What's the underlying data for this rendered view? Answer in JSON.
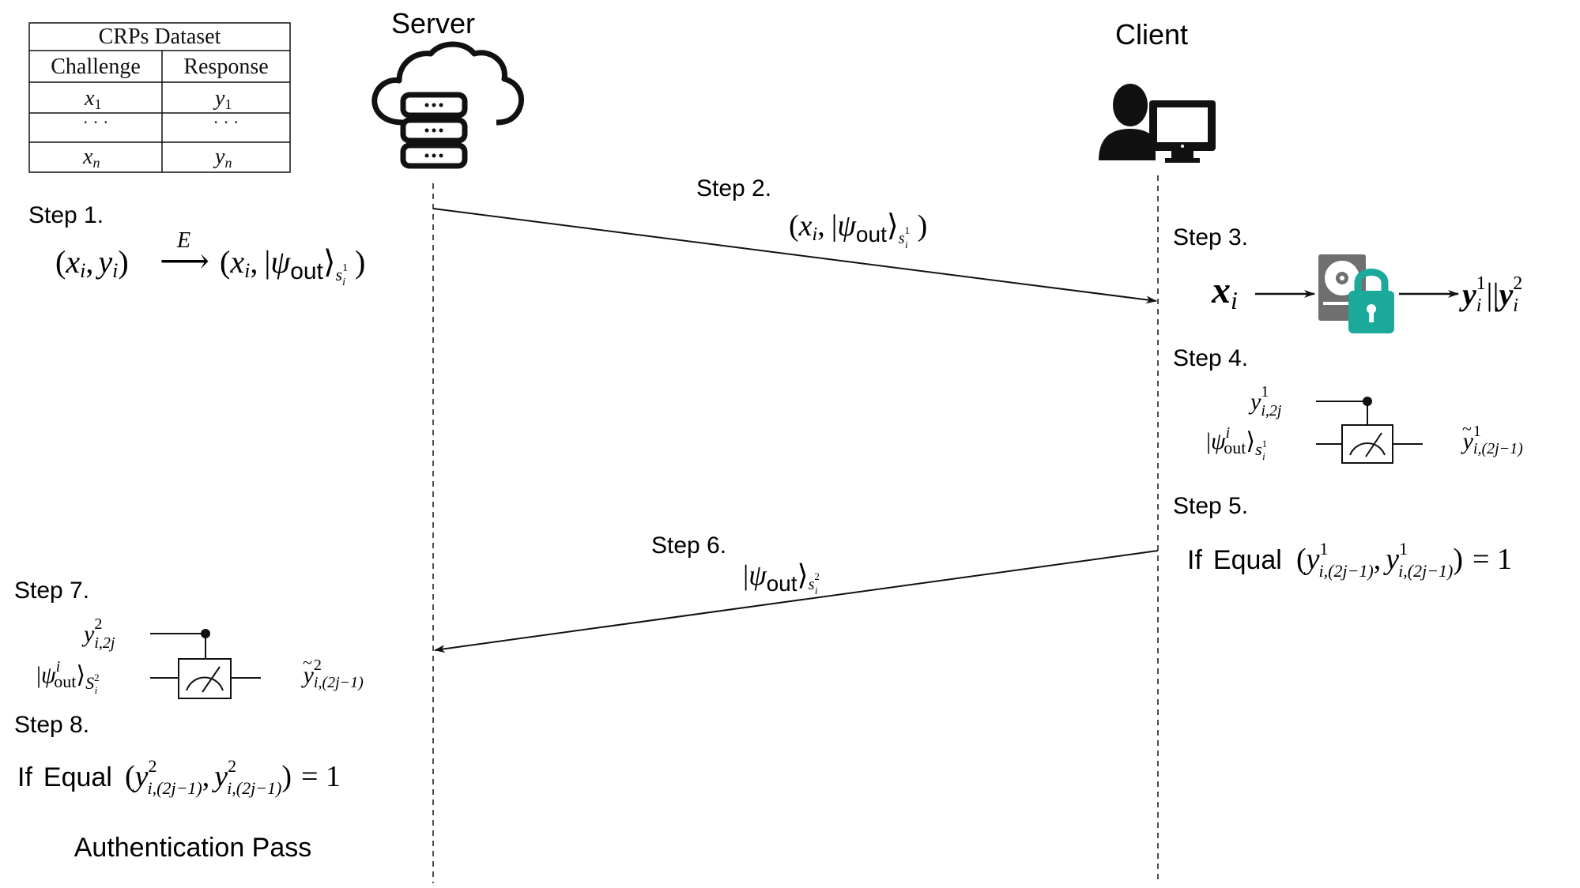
{
  "table": {
    "title": "CRPs Dataset",
    "headers": [
      "Challenge",
      "Response"
    ],
    "rows": [
      {
        "challenge": "x",
        "challenge_sub": "1",
        "response": "y",
        "response_sub": "1"
      },
      {
        "challenge": "· · ·",
        "challenge_sub": "",
        "response": "· · ·",
        "response_sub": ""
      },
      {
        "challenge": "x",
        "challenge_sub": "n",
        "response": "y",
        "response_sub": "n"
      }
    ]
  },
  "server": {
    "label": "Server",
    "icon": "cloud-database-icon"
  },
  "client": {
    "label": "Client",
    "icon": "user-computer-icon"
  },
  "steps": {
    "step1": {
      "label": "Step 1."
    },
    "step2": {
      "label": "Step 2."
    },
    "step3": {
      "label": "Step 3."
    },
    "step4": {
      "label": "Step 4."
    },
    "step5": {
      "label": "Step 5."
    },
    "step6": {
      "label": "Step 6."
    },
    "step7": {
      "label": "Step 7."
    },
    "step8": {
      "label": "Step 8."
    }
  },
  "math": {
    "x": "x",
    "y": "y",
    "i": "i",
    "E": "E",
    "out": "out",
    "psi": "ψ",
    "s": "s",
    "one": "1",
    "two": "2",
    "n": "n",
    "i_2j": "i,2j",
    "i_2jm1": "i,(2j−1)",
    "ket_l": "|",
    "ket_r": "⟩",
    "lp": "(",
    "rp": ")",
    "comma": ",",
    "bars": "||",
    "eq": "= 1",
    "arrow": "⟶",
    "tilde": "~"
  },
  "compare": {
    "if": "If",
    "equal": "Equal"
  },
  "result": {
    "label": "Authentication Pass"
  },
  "icons": {
    "hdd": "hard-drive-icon",
    "lock": "padlock-icon",
    "measure": "measurement-meter-icon"
  },
  "colors": {
    "lock": "#1aa99a",
    "hdd": "#6f6f6f",
    "ink": "#111111"
  }
}
